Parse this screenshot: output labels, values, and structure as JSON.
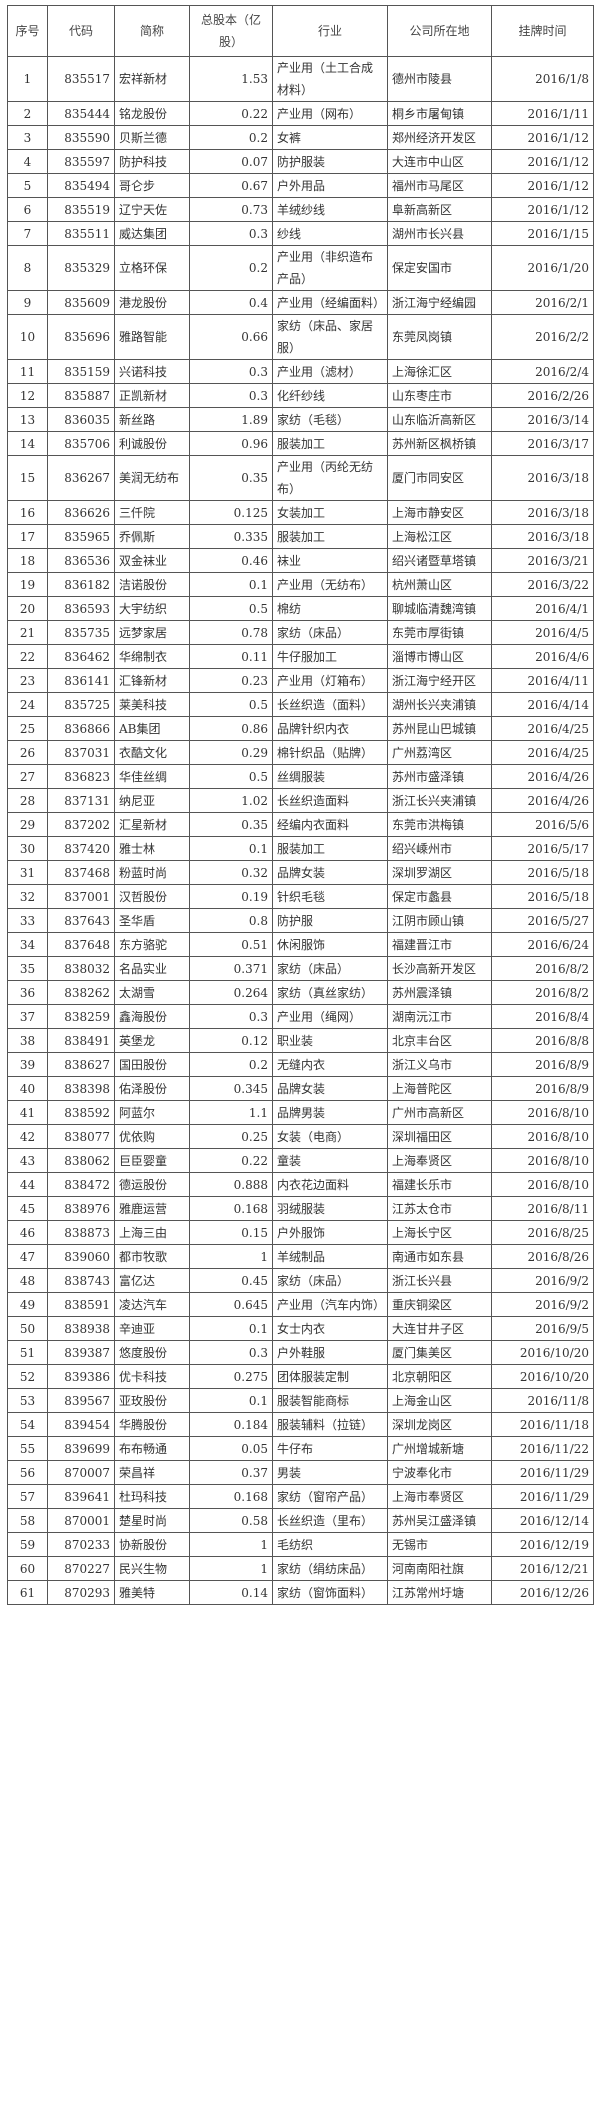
{
  "table": {
    "headers": [
      "序号",
      "代码",
      "简称",
      "总股本（亿股）",
      "行业",
      "公司所在地",
      "挂牌时间"
    ],
    "rows": [
      [
        "1",
        "835517",
        "宏祥新材",
        "1.53",
        "产业用（土工合成材料）",
        "德州市陵县",
        "2016/1/8"
      ],
      [
        "2",
        "835444",
        "铭龙股份",
        "0.22",
        "产业用（网布）",
        "桐乡市屠甸镇",
        "2016/1/11"
      ],
      [
        "3",
        "835590",
        "贝斯兰德",
        "0.2",
        "女裤",
        "郑州经济开发区",
        "2016/1/12"
      ],
      [
        "4",
        "835597",
        "防护科技",
        "0.07",
        "防护服装",
        "大连市中山区",
        "2016/1/12"
      ],
      [
        "5",
        "835494",
        "哥仑步",
        "0.67",
        "户外用品",
        "福州市马尾区",
        "2016/1/12"
      ],
      [
        "6",
        "835519",
        "辽宁天佐",
        "0.73",
        "羊绒纱线",
        "阜新高新区",
        "2016/1/12"
      ],
      [
        "7",
        "835511",
        "威达集团",
        "0.3",
        "纱线",
        "湖州市长兴县",
        "2016/1/15"
      ],
      [
        "8",
        "835329",
        "立格环保",
        "0.2",
        "产业用（非织造布产品）",
        "保定安国市",
        "2016/1/20"
      ],
      [
        "9",
        "835609",
        "港龙股份",
        "0.4",
        "产业用（经编面料）",
        "浙江海宁经编园",
        "2016/2/1"
      ],
      [
        "10",
        "835696",
        "雅路智能",
        "0.66",
        "家纺（床品、家居服）",
        "东莞凤岗镇",
        "2016/2/2"
      ],
      [
        "11",
        "835159",
        "兴诺科技",
        "0.3",
        "产业用（滤材）",
        "上海徐汇区",
        "2016/2/4"
      ],
      [
        "12",
        "835887",
        "正凯新材",
        "0.3",
        "化纤纱线",
        "山东枣庄市",
        "2016/2/26"
      ],
      [
        "13",
        "836035",
        "新丝路",
        "1.89",
        "家纺（毛毯）",
        "山东临沂高新区",
        "2016/3/14"
      ],
      [
        "14",
        "835706",
        "利诚股份",
        "0.96",
        "服装加工",
        "苏州新区枫桥镇",
        "2016/3/17"
      ],
      [
        "15",
        "836267",
        "美润无纺布",
        "0.35",
        "产业用（丙纶无纺布）",
        "厦门市同安区",
        "2016/3/18"
      ],
      [
        "16",
        "836626",
        "三仟院",
        "0.125",
        "女装加工",
        "上海市静安区",
        "2016/3/18"
      ],
      [
        "17",
        "835965",
        "乔佩斯",
        "0.335",
        "服装加工",
        "上海松江区",
        "2016/3/18"
      ],
      [
        "18",
        "836536",
        "双金袜业",
        "0.46",
        "袜业",
        "绍兴诸暨草塔镇",
        "2016/3/21"
      ],
      [
        "19",
        "836182",
        "洁诺股份",
        "0.1",
        "产业用（无纺布）",
        "杭州萧山区",
        "2016/3/22"
      ],
      [
        "20",
        "836593",
        "大宇纺织",
        "0.5",
        "棉纺",
        "聊城临清魏湾镇",
        "2016/4/1"
      ],
      [
        "21",
        "835735",
        "远梦家居",
        "0.78",
        "家纺（床品）",
        "东莞市厚街镇",
        "2016/4/5"
      ],
      [
        "22",
        "836462",
        "华绵制衣",
        "0.11",
        "牛仔服加工",
        "淄博市博山区",
        "2016/4/6"
      ],
      [
        "23",
        "836141",
        "汇锋新材",
        "0.23",
        "产业用（灯箱布）",
        "浙江海宁经开区",
        "2016/4/11"
      ],
      [
        "24",
        "835725",
        "莱美科技",
        "0.5",
        "长丝织造（面料）",
        "湖州长兴夹浦镇",
        "2016/4/14"
      ],
      [
        "25",
        "836866",
        "AB集团",
        "0.86",
        "品牌针织内衣",
        "苏州昆山巴城镇",
        "2016/4/25"
      ],
      [
        "26",
        "837031",
        "衣酷文化",
        "0.29",
        "棉针织品（贴牌）",
        "广州荔湾区",
        "2016/4/25"
      ],
      [
        "27",
        "836823",
        "华佳丝绸",
        "0.5",
        "丝绸服装",
        "苏州市盛泽镇",
        "2016/4/26"
      ],
      [
        "28",
        "837131",
        "纳尼亚",
        "1.02",
        "长丝织造面料",
        "浙江长兴夹浦镇",
        "2016/4/26"
      ],
      [
        "29",
        "837202",
        "汇星新材",
        "0.35",
        "经编内衣面料",
        "东莞市洪梅镇",
        "2016/5/6"
      ],
      [
        "30",
        "837420",
        "雅士林",
        "0.1",
        "服装加工",
        "绍兴嵊州市",
        "2016/5/17"
      ],
      [
        "31",
        "837468",
        "粉蓝时尚",
        "0.32",
        "品牌女装",
        "深圳罗湖区",
        "2016/5/18"
      ],
      [
        "32",
        "837001",
        "汉哲股份",
        "0.19",
        "针织毛毯",
        "保定市蠡县",
        "2016/5/18"
      ],
      [
        "33",
        "837643",
        "圣华盾",
        "0.8",
        "防护服",
        "江阴市顾山镇",
        "2016/5/27"
      ],
      [
        "34",
        "837648",
        "东方骆驼",
        "0.51",
        "休闲服饰",
        "福建晋江市",
        "2016/6/24"
      ],
      [
        "35",
        "838032",
        "名品实业",
        "0.371",
        "家纺（床品）",
        "长沙高新开发区",
        "2016/8/2"
      ],
      [
        "36",
        "838262",
        "太湖雪",
        "0.264",
        "家纺（真丝家纺）",
        "苏州震泽镇",
        "2016/8/2"
      ],
      [
        "37",
        "838259",
        "鑫海股份",
        "0.3",
        "产业用（绳网）",
        "湖南沅江市",
        "2016/8/4"
      ],
      [
        "38",
        "838491",
        "英堡龙",
        "0.12",
        "职业装",
        "北京丰台区",
        "2016/8/8"
      ],
      [
        "39",
        "838627",
        "国田股份",
        "0.2",
        "无缝内衣",
        "浙江义乌市",
        "2016/8/9"
      ],
      [
        "40",
        "838398",
        "佑泽股份",
        "0.345",
        "品牌女装",
        "上海普陀区",
        "2016/8/9"
      ],
      [
        "41",
        "838592",
        "阿蓝尔",
        "1.1",
        "品牌男装",
        "广州市高新区",
        "2016/8/10"
      ],
      [
        "42",
        "838077",
        "优依购",
        "0.25",
        "女装（电商）",
        "深圳福田区",
        "2016/8/10"
      ],
      [
        "43",
        "838062",
        "巨臣婴童",
        "0.22",
        "童装",
        "上海奉贤区",
        "2016/8/10"
      ],
      [
        "44",
        "838472",
        "德运股份",
        "0.888",
        "内衣花边面料",
        "福建长乐市",
        "2016/8/10"
      ],
      [
        "45",
        "838976",
        "雅鹿运营",
        "0.168",
        "羽绒服装",
        "江苏太仓市",
        "2016/8/11"
      ],
      [
        "46",
        "838873",
        "上海三由",
        "0.15",
        "户外服饰",
        "上海长宁区",
        "2016/8/25"
      ],
      [
        "47",
        "839060",
        "都市牧歌",
        "1",
        "羊绒制品",
        "南通市如东县",
        "2016/8/26"
      ],
      [
        "48",
        "838743",
        "富亿达",
        "0.45",
        "家纺（床品）",
        "浙江长兴县",
        "2016/9/2"
      ],
      [
        "49",
        "838591",
        "凌达汽车",
        "0.645",
        "产业用（汽车内饰）",
        "重庆铜梁区",
        "2016/9/2"
      ],
      [
        "50",
        "838938",
        "辛迪亚",
        "0.1",
        "女士内衣",
        "大连甘井子区",
        "2016/9/5"
      ],
      [
        "51",
        "839387",
        "悠度股份",
        "0.3",
        "户外鞋服",
        "厦门集美区",
        "2016/10/20"
      ],
      [
        "52",
        "839386",
        "优卡科技",
        "0.275",
        "团体服装定制",
        "北京朝阳区",
        "2016/10/20"
      ],
      [
        "53",
        "839567",
        "亚玫股份",
        "0.1",
        "服装智能商标",
        "上海金山区",
        "2016/11/8"
      ],
      [
        "54",
        "839454",
        "华腾股份",
        "0.184",
        "服装辅料（拉链）",
        "深圳龙岗区",
        "2016/11/18"
      ],
      [
        "55",
        "839699",
        "布布畅通",
        "0.05",
        "牛仔布",
        "广州增城新塘",
        "2016/11/22"
      ],
      [
        "56",
        "870007",
        "荣昌祥",
        "0.37",
        "男装",
        "宁波奉化市",
        "2016/11/29"
      ],
      [
        "57",
        "839641",
        "杜玛科技",
        "0.168",
        "家纺（窗帘产品）",
        "上海市奉贤区",
        "2016/11/29"
      ],
      [
        "58",
        "870001",
        "楚星时尚",
        "0.58",
        "长丝织造（里布）",
        "苏州吴江盛泽镇",
        "2016/12/14"
      ],
      [
        "59",
        "870233",
        "协新股份",
        "1",
        "毛纺织",
        "无锡市",
        "2016/12/19"
      ],
      [
        "60",
        "870227",
        "民兴生物",
        "1",
        "家纺（绢纺床品）",
        "河南南阳社旗",
        "2016/12/21"
      ],
      [
        "61",
        "870293",
        "雅美特",
        "0.14",
        "家纺（窗饰面料）",
        "江苏常州圩塘",
        "2016/12/26"
      ]
    ]
  }
}
